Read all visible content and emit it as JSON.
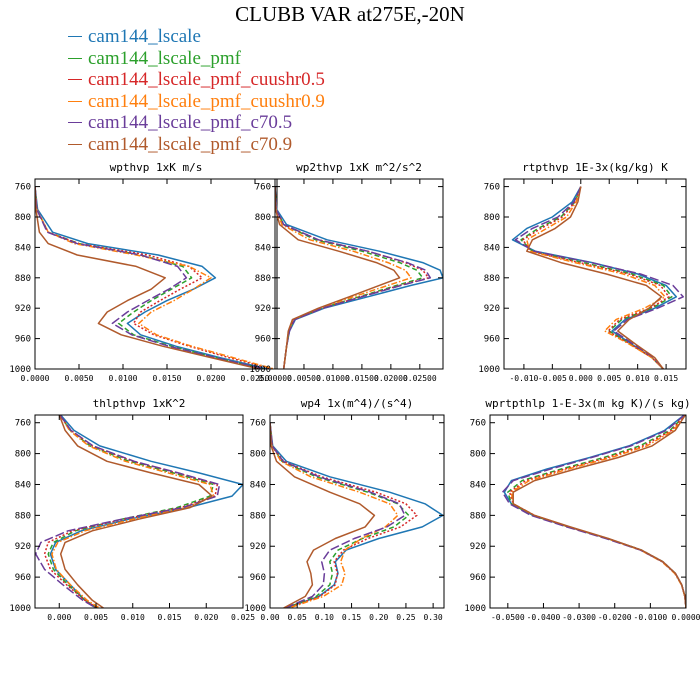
{
  "title": "CLUBB VAR at275E,-20N",
  "series": [
    {
      "name": "cam144_lscale",
      "color": "#1f77b4",
      "dash": "solid"
    },
    {
      "name": "cam144_lscale_pmf",
      "color": "#2ca02c",
      "dash": "dashed"
    },
    {
      "name": "cam144_lscale_pmf_cuushr0.5",
      "color": "#d62728",
      "dash": "dotted"
    },
    {
      "name": "cam144_lscale_pmf_cuushr0.9",
      "color": "#ff7f0e",
      "dash": "dashdot"
    },
    {
      "name": "cam144_lscale_pmf_c70.5",
      "color": "#6a3d9a",
      "dash": "longdash"
    },
    {
      "name": "cam144_lscale_pmf_c70.9",
      "color": "#b05a2c",
      "dash": "solid"
    }
  ],
  "chart_data": [
    {
      "type": "line",
      "title": "wpthvp  1xK m/s",
      "ylim": [
        1000,
        750
      ],
      "yticks": [
        760,
        800,
        840,
        880,
        920,
        960,
        1000
      ],
      "xlim": [
        0,
        0.0275
      ],
      "xticks": [
        0,
        0.005,
        0.01,
        0.015,
        0.02,
        0.025
      ],
      "xticklabels": [
        "0.0000",
        "0.0050",
        "0.0100",
        "0.0150",
        "0.0200",
        "0.0250"
      ],
      "levels": [
        760,
        790,
        820,
        835,
        850,
        865,
        880,
        895,
        910,
        925,
        940,
        955,
        970,
        985,
        1000
      ],
      "series_values": [
        [
          0,
          0.0003,
          0.002,
          0.006,
          0.014,
          0.019,
          0.0205,
          0.018,
          0.015,
          0.0125,
          0.0105,
          0.012,
          0.016,
          0.021,
          0.0265
        ],
        [
          0,
          0.0002,
          0.0015,
          0.005,
          0.012,
          0.0168,
          0.0178,
          0.0155,
          0.0132,
          0.0112,
          0.0095,
          0.0112,
          0.0155,
          0.0205,
          0.026
        ],
        [
          0,
          0.0002,
          0.0015,
          0.005,
          0.0128,
          0.0175,
          0.019,
          0.0165,
          0.0142,
          0.012,
          0.0112,
          0.0135,
          0.0175,
          0.022,
          0.027
        ],
        [
          0,
          0.0002,
          0.0015,
          0.0045,
          0.0115,
          0.0175,
          0.02,
          0.018,
          0.0158,
          0.0132,
          0.0118,
          0.0138,
          0.0178,
          0.0225,
          0.0272
        ],
        [
          0,
          0.0002,
          0.0014,
          0.0048,
          0.012,
          0.0162,
          0.0172,
          0.0152,
          0.0128,
          0.0105,
          0.0088,
          0.011,
          0.0152,
          0.0205,
          0.026
        ],
        [
          0,
          0.0001,
          0.0005,
          0.0015,
          0.0048,
          0.0115,
          0.0148,
          0.0132,
          0.0105,
          0.0082,
          0.0072,
          0.0098,
          0.0145,
          0.02,
          0.0255
        ]
      ]
    },
    {
      "type": "line",
      "title": "wp2thvp  1xK m^2/s^2",
      "ylim": [
        1000,
        750
      ],
      "yticks": [
        760,
        800,
        840,
        880,
        920,
        960,
        1000
      ],
      "xlim": [
        0,
        0.029
      ],
      "xticks": [
        0,
        0.005,
        0.01,
        0.015,
        0.02,
        0.025
      ],
      "xticklabels": [
        "0.00000",
        "0.00500",
        "0.01000",
        "0.01500",
        "0.02000",
        "0.02500"
      ],
      "levels": [
        760,
        790,
        810,
        830,
        845,
        860,
        870,
        880,
        890,
        905,
        920,
        935,
        950,
        970,
        1000
      ],
      "series_values": [
        [
          0,
          0.0003,
          0.002,
          0.009,
          0.018,
          0.0255,
          0.0285,
          0.029,
          0.0235,
          0.016,
          0.0085,
          0.0035,
          0.0025,
          0.002,
          0.0015
        ],
        [
          0,
          0.0002,
          0.0015,
          0.007,
          0.015,
          0.0215,
          0.0245,
          0.0255,
          0.021,
          0.0145,
          0.008,
          0.0032,
          0.0024,
          0.002,
          0.0015
        ],
        [
          0,
          0.0002,
          0.0015,
          0.0075,
          0.016,
          0.0225,
          0.0255,
          0.0265,
          0.0215,
          0.0148,
          0.0082,
          0.0033,
          0.0024,
          0.002,
          0.0015
        ],
        [
          0,
          0.0002,
          0.0012,
          0.006,
          0.0135,
          0.0195,
          0.0225,
          0.0235,
          0.0195,
          0.0135,
          0.0078,
          0.0031,
          0.0023,
          0.002,
          0.0015
        ],
        [
          0,
          0.0002,
          0.0015,
          0.0075,
          0.016,
          0.0228,
          0.026,
          0.0268,
          0.0218,
          0.015,
          0.0082,
          0.0034,
          0.0025,
          0.002,
          0.0015
        ],
        [
          0,
          0.0001,
          0.0008,
          0.004,
          0.011,
          0.0175,
          0.0205,
          0.0215,
          0.018,
          0.0128,
          0.0075,
          0.003,
          0.0023,
          0.002,
          0.0015
        ]
      ]
    },
    {
      "type": "line",
      "title": "rtpthvp  1E-3x(kg/kg) K",
      "ylim": [
        1000,
        750
      ],
      "yticks": [
        760,
        800,
        840,
        880,
        920,
        960,
        1000
      ],
      "xlim": [
        -0.0135,
        0.0185
      ],
      "xticks": [
        -0.01,
        -0.005,
        0,
        0.005,
        0.01,
        0.015
      ],
      "xticklabels": [
        "-0.010",
        "-0.005",
        "0.000",
        "0.005",
        "0.010",
        "0.015"
      ],
      "levels": [
        760,
        780,
        800,
        815,
        830,
        845,
        860,
        875,
        890,
        905,
        920,
        935,
        950,
        965,
        985,
        1000
      ],
      "series_values": [
        [
          0,
          -0.0015,
          -0.005,
          -0.0095,
          -0.012,
          -0.008,
          0.002,
          0.01,
          0.015,
          0.0168,
          0.013,
          0.0078,
          0.0055,
          0.0085,
          0.0125,
          0.0145
        ],
        [
          0,
          -0.001,
          -0.0035,
          -0.0075,
          -0.0105,
          -0.0085,
          0.0005,
          0.009,
          0.0145,
          0.016,
          0.0125,
          0.0072,
          0.005,
          0.0082,
          0.0125,
          0.0145
        ],
        [
          0,
          -0.001,
          -0.0032,
          -0.007,
          -0.0102,
          -0.0088,
          -0.0002,
          0.0085,
          0.014,
          0.0155,
          0.0122,
          0.0068,
          0.0048,
          0.0082,
          0.0125,
          0.0145
        ],
        [
          0,
          -0.0008,
          -0.0025,
          -0.006,
          -0.0095,
          -0.009,
          -0.001,
          0.0075,
          0.013,
          0.0148,
          0.0112,
          0.0062,
          0.0042,
          0.008,
          0.0125,
          0.0145
        ],
        [
          0,
          -0.0012,
          -0.004,
          -0.0085,
          -0.0115,
          -0.0082,
          0.0018,
          0.0105,
          0.0162,
          0.018,
          0.0135,
          0.0082,
          0.0058,
          0.0088,
          0.0128,
          0.0145
        ],
        [
          0,
          -0.0005,
          -0.0018,
          -0.0045,
          -0.0085,
          -0.0095,
          -0.0035,
          0.0045,
          0.0115,
          0.0142,
          0.012,
          0.0085,
          0.0065,
          0.0092,
          0.013,
          0.0145
        ]
      ]
    },
    {
      "type": "line",
      "title": "thlpthvp  1xK^2",
      "ylim": [
        1000,
        750
      ],
      "yticks": [
        760,
        800,
        840,
        880,
        920,
        960,
        1000
      ],
      "xlim": [
        -0.0033,
        0.025
      ],
      "xticks": [
        0,
        0.005,
        0.01,
        0.015,
        0.02,
        0.025
      ],
      "xticklabels": [
        "0.000",
        "0.005",
        "0.010",
        "0.015",
        "0.020",
        "0.025"
      ],
      "levels": [
        750,
        770,
        790,
        810,
        825,
        840,
        855,
        870,
        885,
        900,
        915,
        930,
        950,
        970,
        990,
        1000
      ],
      "series_values": [
        [
          0.0002,
          0.002,
          0.0055,
          0.0125,
          0.019,
          0.025,
          0.0235,
          0.0175,
          0.0095,
          0.003,
          -0.0005,
          -0.0012,
          -0.0005,
          0.0015,
          0.0035,
          0.005
        ],
        [
          0.0001,
          0.0015,
          0.0042,
          0.0095,
          0.0155,
          0.021,
          0.0205,
          0.016,
          0.0085,
          0.0022,
          -0.0008,
          -0.0015,
          -0.0008,
          0.0012,
          0.0035,
          0.0052
        ],
        [
          0.0001,
          0.0016,
          0.0045,
          0.01,
          0.016,
          0.0215,
          0.0212,
          0.0165,
          0.0088,
          0.0018,
          -0.0015,
          -0.002,
          -0.0012,
          0.001,
          0.0035,
          0.0052
        ],
        [
          0.0001,
          0.0014,
          0.004,
          0.009,
          0.0148,
          0.0205,
          0.021,
          0.0172,
          0.01,
          0.0035,
          -0.0002,
          -0.001,
          -0.0004,
          0.0015,
          0.0038,
          0.0055
        ],
        [
          0.0001,
          0.0016,
          0.0046,
          0.0102,
          0.0162,
          0.0218,
          0.0215,
          0.0168,
          0.0085,
          0.0012,
          -0.0025,
          -0.0032,
          -0.002,
          0.0005,
          0.0032,
          0.005
        ],
        [
          0,
          0.0008,
          0.0025,
          0.0065,
          0.0125,
          0.019,
          0.0208,
          0.0178,
          0.0108,
          0.0045,
          0.0008,
          0.0002,
          0.0008,
          0.0025,
          0.0045,
          0.006
        ]
      ]
    },
    {
      "type": "line",
      "title": "wp4  1x(m^4)/(s^4)",
      "ylim": [
        1000,
        750
      ],
      "yticks": [
        760,
        800,
        840,
        880,
        920,
        960,
        1000
      ],
      "xlim": [
        0,
        0.32
      ],
      "xticks": [
        0,
        0.05,
        0.1,
        0.15,
        0.2,
        0.25,
        0.3
      ],
      "xticklabels": [
        "0.00",
        "0.05",
        "0.10",
        "0.15",
        "0.20",
        "0.25",
        "0.30"
      ],
      "levels": [
        760,
        790,
        810,
        830,
        850,
        865,
        880,
        895,
        910,
        925,
        940,
        955,
        970,
        985,
        1000
      ],
      "series_values": [
        [
          0,
          0.005,
          0.03,
          0.11,
          0.22,
          0.285,
          0.318,
          0.28,
          0.2,
          0.14,
          0.12,
          0.125,
          0.118,
          0.09,
          0.03
        ],
        [
          0,
          0.004,
          0.022,
          0.085,
          0.18,
          0.235,
          0.255,
          0.228,
          0.17,
          0.125,
          0.11,
          0.115,
          0.11,
          0.085,
          0.03
        ],
        [
          0,
          0.004,
          0.025,
          0.095,
          0.195,
          0.25,
          0.27,
          0.24,
          0.18,
          0.135,
          0.118,
          0.124,
          0.12,
          0.092,
          0.032
        ],
        [
          0,
          0.004,
          0.02,
          0.075,
          0.165,
          0.22,
          0.235,
          0.212,
          0.168,
          0.138,
          0.13,
          0.138,
          0.132,
          0.098,
          0.035
        ],
        [
          0,
          0.004,
          0.024,
          0.09,
          0.185,
          0.238,
          0.248,
          0.215,
          0.155,
          0.11,
          0.095,
          0.1,
          0.098,
          0.078,
          0.028
        ],
        [
          0,
          0.002,
          0.012,
          0.045,
          0.11,
          0.165,
          0.192,
          0.175,
          0.12,
          0.08,
          0.068,
          0.075,
          0.078,
          0.065,
          0.025
        ]
      ]
    },
    {
      "type": "line",
      "title": "wprtpthlp  1-E-3x(m kg K)/(s kg)",
      "ylim": [
        1000,
        750
      ],
      "yticks": [
        760,
        800,
        840,
        880,
        920,
        960,
        1000
      ],
      "xlim": [
        -0.055,
        0
      ],
      "xticks": [
        -0.05,
        -0.04,
        -0.03,
        -0.02,
        -0.01,
        0
      ],
      "xticklabels": [
        "-0.0500",
        "-0.0400",
        "-0.0300",
        "-0.0200",
        "-0.0100",
        "0.0000"
      ],
      "levels": [
        750,
        770,
        790,
        805,
        820,
        835,
        850,
        865,
        880,
        895,
        910,
        925,
        940,
        955,
        970,
        985,
        1000
      ],
      "series_values": [
        [
          -0.0005,
          -0.006,
          -0.016,
          -0.027,
          -0.039,
          -0.049,
          -0.051,
          -0.049,
          -0.043,
          -0.033,
          -0.022,
          -0.0125,
          -0.0065,
          -0.003,
          -0.0012,
          -0.0003,
          0
        ],
        [
          -0.0003,
          -0.0045,
          -0.013,
          -0.023,
          -0.035,
          -0.046,
          -0.05,
          -0.049,
          -0.043,
          -0.033,
          -0.022,
          -0.0125,
          -0.0065,
          -0.003,
          -0.0012,
          -0.0003,
          0
        ],
        [
          -0.0003,
          -0.004,
          -0.012,
          -0.022,
          -0.034,
          -0.045,
          -0.0495,
          -0.0485,
          -0.0425,
          -0.033,
          -0.022,
          -0.0125,
          -0.0065,
          -0.003,
          -0.0012,
          -0.0003,
          0
        ],
        [
          -0.0002,
          -0.0035,
          -0.011,
          -0.021,
          -0.033,
          -0.044,
          -0.049,
          -0.0485,
          -0.0425,
          -0.0328,
          -0.0222,
          -0.0128,
          -0.0068,
          -0.0032,
          -0.0013,
          -0.0003,
          0
        ],
        [
          -0.0004,
          -0.0055,
          -0.0155,
          -0.0265,
          -0.038,
          -0.0485,
          -0.0515,
          -0.0495,
          -0.0435,
          -0.0335,
          -0.0225,
          -0.0128,
          -0.0066,
          -0.003,
          -0.0012,
          -0.0003,
          0
        ],
        [
          -0.0002,
          -0.003,
          -0.0095,
          -0.019,
          -0.031,
          -0.0425,
          -0.0485,
          -0.0485,
          -0.0425,
          -0.0325,
          -0.0218,
          -0.0125,
          -0.0065,
          -0.003,
          -0.0012,
          -0.0003,
          0
        ]
      ]
    }
  ]
}
